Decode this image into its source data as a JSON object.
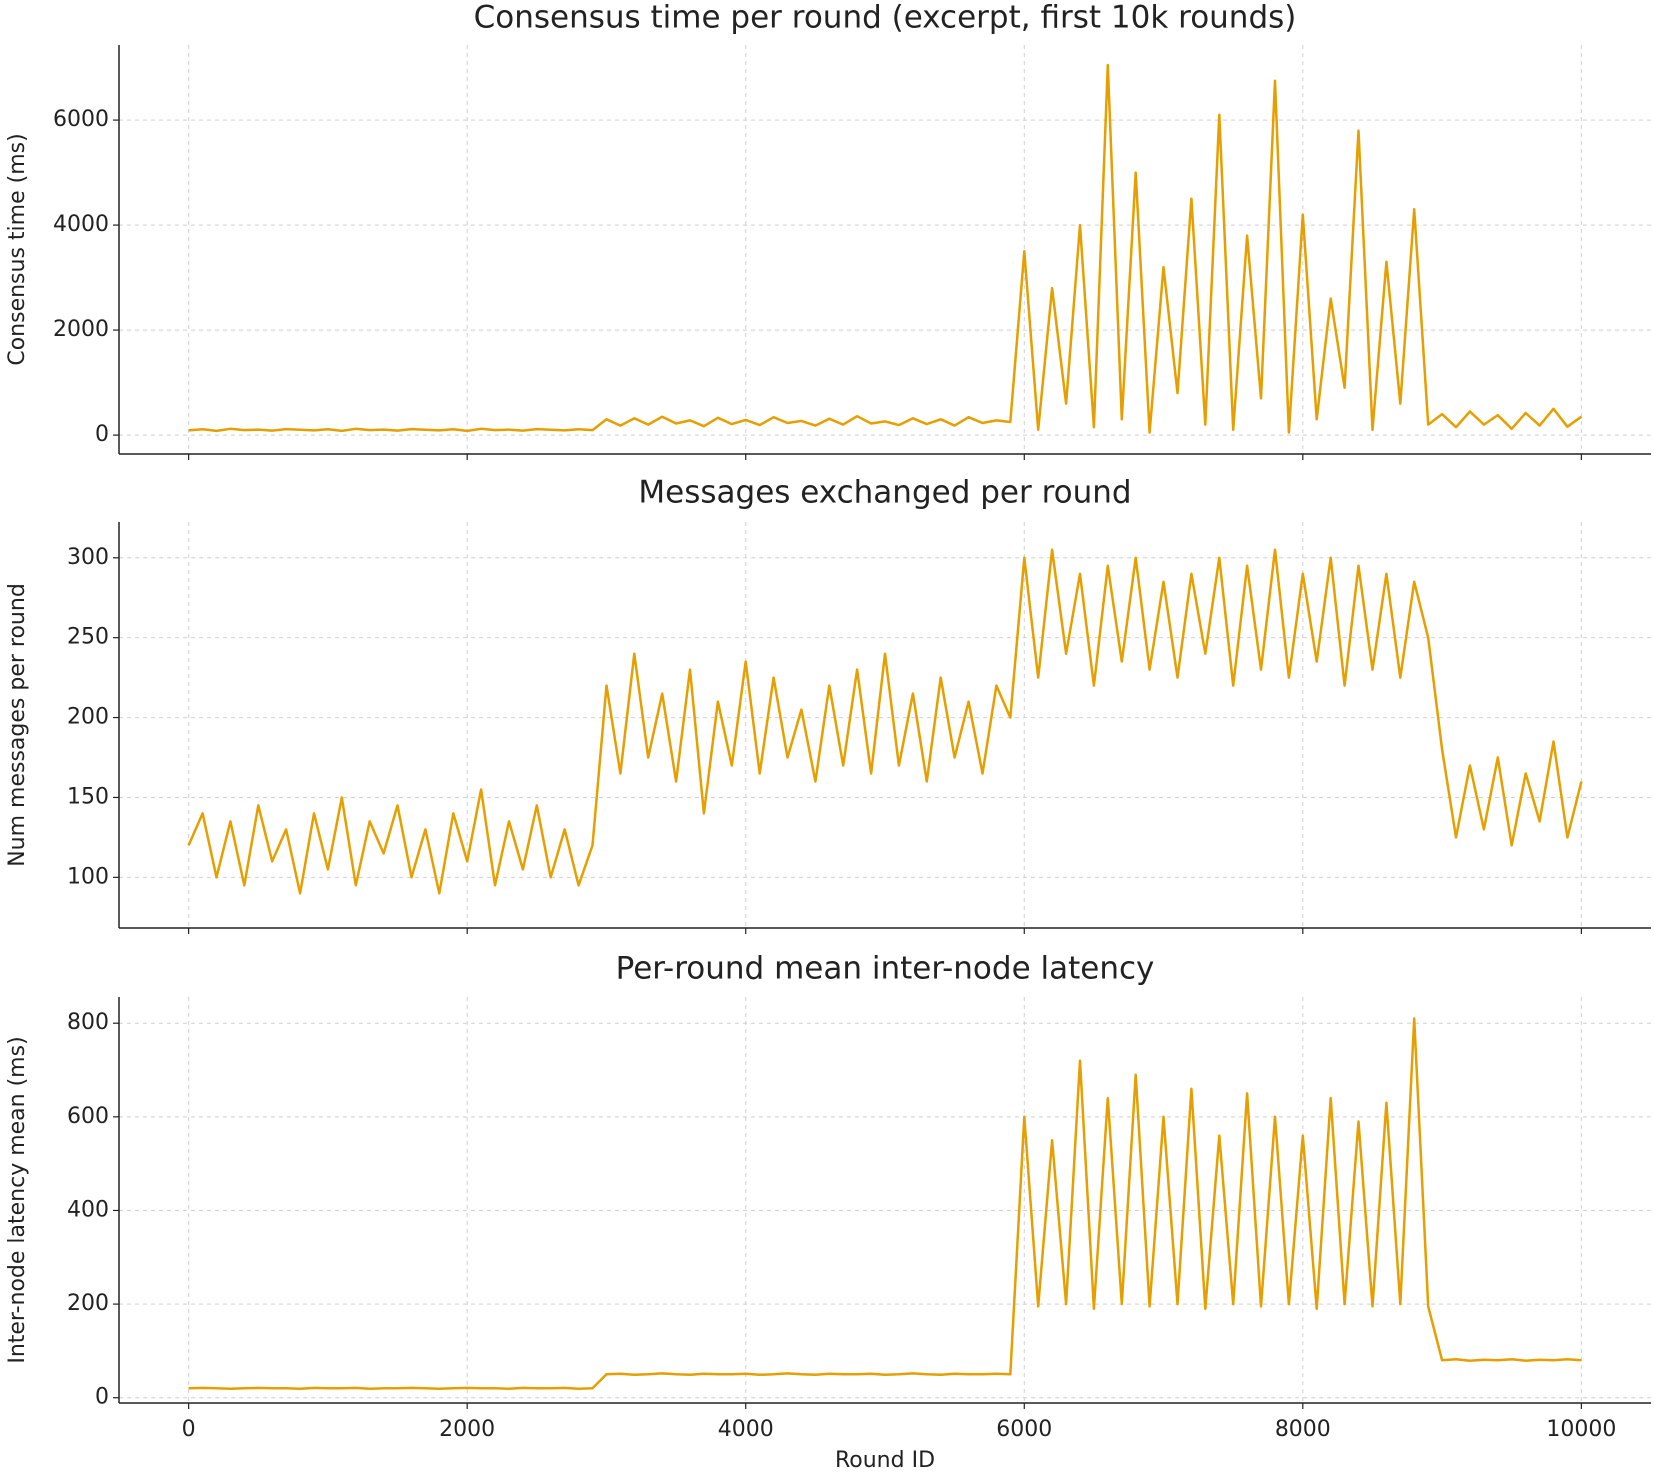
{
  "chart_data": [
    {
      "type": "line",
      "title": "Consensus time per round (excerpt, first 10k rounds)",
      "y_label": "Consensus time (ms)",
      "x": [
        0,
        100,
        200,
        300,
        400,
        500,
        600,
        700,
        800,
        900,
        1000,
        1100,
        1200,
        1300,
        1400,
        1500,
        1600,
        1700,
        1800,
        1900,
        2000,
        2100,
        2200,
        2300,
        2400,
        2500,
        2600,
        2700,
        2800,
        2900,
        3000,
        3100,
        3200,
        3300,
        3400,
        3500,
        3600,
        3700,
        3800,
        3900,
        4000,
        4100,
        4200,
        4300,
        4400,
        4500,
        4600,
        4700,
        4800,
        4900,
        5000,
        5100,
        5200,
        5300,
        5400,
        5500,
        5600,
        5700,
        5800,
        5900,
        6000,
        6100,
        6200,
        6300,
        6400,
        6500,
        6600,
        6700,
        6800,
        6900,
        7000,
        7100,
        7200,
        7300,
        7400,
        7500,
        7600,
        7700,
        7800,
        7900,
        8000,
        8100,
        8200,
        8300,
        8400,
        8500,
        8600,
        8700,
        8800,
        8900,
        9000,
        9100,
        9200,
        9300,
        9400,
        9500,
        9600,
        9700,
        9800,
        9900,
        10000
      ],
      "values": [
        90,
        110,
        80,
        120,
        95,
        105,
        85,
        115,
        100,
        90,
        110,
        80,
        120,
        95,
        105,
        85,
        115,
        100,
        90,
        110,
        80,
        120,
        95,
        105,
        85,
        115,
        100,
        90,
        110,
        95,
        300,
        180,
        320,
        200,
        350,
        220,
        280,
        170,
        330,
        210,
        290,
        190,
        340,
        230,
        270,
        180,
        310,
        200,
        360,
        220,
        260,
        190,
        320,
        210,
        300,
        180,
        340,
        230,
        280,
        250,
        3500,
        100,
        2800,
        600,
        4000,
        150,
        7050,
        300,
        5000,
        50,
        3200,
        800,
        4500,
        200,
        6100,
        100,
        3800,
        700,
        6750,
        50,
        4200,
        300,
        2600,
        900,
        5800,
        100,
        3300,
        600,
        4300,
        200,
        400,
        150,
        450,
        200,
        380,
        120,
        420,
        180,
        500,
        160,
        350
      ],
      "color": "#e69f00",
      "xlim": [
        -500,
        10500
      ],
      "ylim": [
        -360,
        7430
      ],
      "xticks": [
        0,
        2000,
        4000,
        6000,
        8000,
        10000
      ],
      "yticks": [
        0,
        2000,
        4000,
        6000
      ],
      "grid": true
    },
    {
      "type": "line",
      "title": "Messages exchanged per round",
      "y_label": "Num messages per round",
      "x": [
        0,
        100,
        200,
        300,
        400,
        500,
        600,
        700,
        800,
        900,
        1000,
        1100,
        1200,
        1300,
        1400,
        1500,
        1600,
        1700,
        1800,
        1900,
        2000,
        2100,
        2200,
        2300,
        2400,
        2500,
        2600,
        2700,
        2800,
        2900,
        3000,
        3100,
        3200,
        3300,
        3400,
        3500,
        3600,
        3700,
        3800,
        3900,
        4000,
        4100,
        4200,
        4300,
        4400,
        4500,
        4600,
        4700,
        4800,
        4900,
        5000,
        5100,
        5200,
        5300,
        5400,
        5500,
        5600,
        5700,
        5800,
        5900,
        6000,
        6100,
        6200,
        6300,
        6400,
        6500,
        6600,
        6700,
        6800,
        6900,
        7000,
        7100,
        7200,
        7300,
        7400,
        7500,
        7600,
        7700,
        7800,
        7900,
        8000,
        8100,
        8200,
        8300,
        8400,
        8500,
        8600,
        8700,
        8800,
        8900,
        9000,
        9100,
        9200,
        9300,
        9400,
        9500,
        9600,
        9700,
        9800,
        9900,
        10000
      ],
      "values": [
        120,
        140,
        100,
        135,
        95,
        145,
        110,
        130,
        90,
        140,
        105,
        150,
        95,
        135,
        115,
        145,
        100,
        130,
        90,
        140,
        110,
        155,
        95,
        135,
        105,
        145,
        100,
        130,
        95,
        120,
        220,
        165,
        240,
        175,
        215,
        160,
        230,
        140,
        210,
        170,
        235,
        165,
        225,
        175,
        205,
        160,
        220,
        170,
        230,
        165,
        240,
        170,
        215,
        160,
        225,
        175,
        210,
        165,
        220,
        200,
        300,
        225,
        305,
        240,
        290,
        220,
        295,
        235,
        300,
        230,
        285,
        225,
        290,
        240,
        300,
        220,
        295,
        230,
        305,
        225,
        290,
        235,
        300,
        220,
        295,
        230,
        290,
        225,
        285,
        250,
        180,
        125,
        170,
        130,
        175,
        120,
        165,
        135,
        185,
        125,
        160
      ],
      "color": "#e69f00",
      "xlim": [
        -500,
        10500
      ],
      "ylim": [
        68.3,
        322.4
      ],
      "xticks": [
        0,
        2000,
        4000,
        6000,
        8000,
        10000
      ],
      "yticks": [
        100,
        150,
        200,
        250,
        300
      ],
      "grid": true
    },
    {
      "type": "line",
      "title": "Per-round mean inter-node latency",
      "y_label": "Inter-node latency mean (ms)",
      "x_label": "Round ID",
      "x": [
        0,
        100,
        200,
        300,
        400,
        500,
        600,
        700,
        800,
        900,
        1000,
        1100,
        1200,
        1300,
        1400,
        1500,
        1600,
        1700,
        1800,
        1900,
        2000,
        2100,
        2200,
        2300,
        2400,
        2500,
        2600,
        2700,
        2800,
        2900,
        3000,
        3100,
        3200,
        3300,
        3400,
        3500,
        3600,
        3700,
        3800,
        3900,
        4000,
        4100,
        4200,
        4300,
        4400,
        4500,
        4600,
        4700,
        4800,
        4900,
        5000,
        5100,
        5200,
        5300,
        5400,
        5500,
        5600,
        5700,
        5800,
        5900,
        6000,
        6100,
        6200,
        6300,
        6400,
        6500,
        6600,
        6700,
        6800,
        6900,
        7000,
        7100,
        7200,
        7300,
        7400,
        7500,
        7600,
        7700,
        7800,
        7900,
        8000,
        8100,
        8200,
        8300,
        8400,
        8500,
        8600,
        8700,
        8800,
        8900,
        9000,
        9100,
        9200,
        9300,
        9400,
        9500,
        9600,
        9700,
        9800,
        9900,
        10000
      ],
      "values": [
        20,
        21,
        20,
        19,
        20,
        21,
        20,
        20,
        19,
        21,
        20,
        20,
        21,
        19,
        20,
        20,
        21,
        20,
        19,
        20,
        21,
        20,
        20,
        19,
        21,
        20,
        20,
        21,
        19,
        20,
        50,
        51,
        49,
        50,
        52,
        50,
        49,
        51,
        50,
        50,
        51,
        49,
        50,
        52,
        50,
        49,
        51,
        50,
        50,
        51,
        49,
        50,
        52,
        50,
        49,
        51,
        50,
        50,
        51,
        50,
        600,
        195,
        550,
        200,
        720,
        190,
        640,
        200,
        690,
        195,
        600,
        200,
        660,
        190,
        560,
        200,
        650,
        195,
        600,
        200,
        560,
        190,
        640,
        200,
        590,
        195,
        630,
        200,
        810,
        195,
        80,
        82,
        79,
        81,
        80,
        82,
        79,
        81,
        80,
        82,
        80
      ],
      "color": "#e69f00",
      "xlim": [
        -500,
        10500
      ],
      "ylim": [
        -11.3,
        856
      ],
      "xticks": [
        0,
        2000,
        4000,
        6000,
        8000,
        10000
      ],
      "yticks": [
        0,
        200,
        400,
        600,
        800
      ],
      "grid": true
    }
  ]
}
